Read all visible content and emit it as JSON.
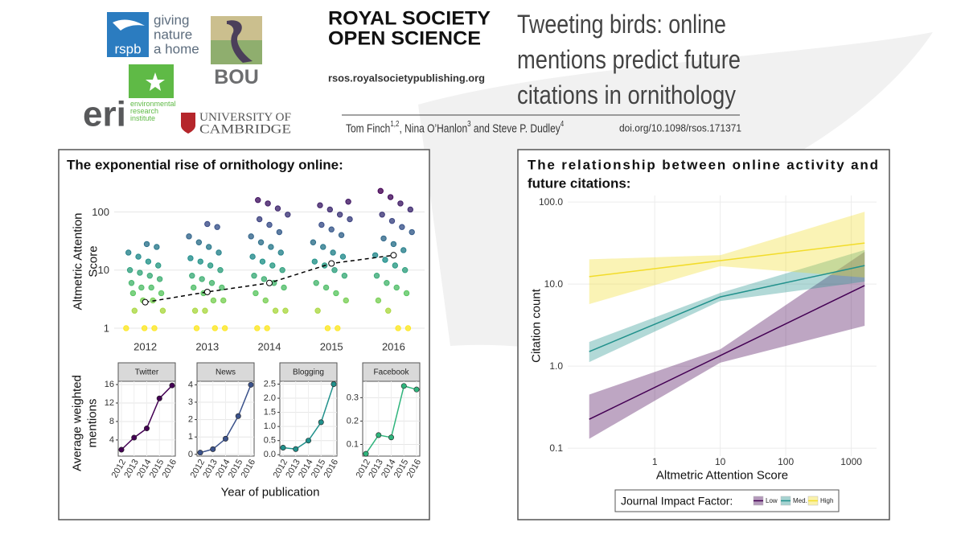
{
  "header": {
    "rspb_logo": {
      "mark": "rspb",
      "tagline": [
        "giving",
        "nature",
        "a home"
      ]
    },
    "bou_logo": "BOU",
    "eri_logo": {
      "mark": "eri",
      "name": [
        "environmental",
        "research",
        "institute"
      ]
    },
    "cambridge_logo": [
      "UNIVERSITY OF",
      "CAMBRIDGE"
    ],
    "journal": [
      "ROYAL SOCIETY",
      "OPEN SCIENCE"
    ],
    "journal_url": "rsos.royalsocietypublishing.org",
    "title": [
      "Tweeting birds: online",
      "mentions predict future",
      "citations in ornithology"
    ],
    "authors": [
      {
        "text": "Tom Finch",
        "sup": "1,2"
      },
      {
        "text": ", Nina O’Hanlon",
        "sup": "3"
      },
      {
        "text": " and Steve P. Dudley",
        "sup": "4"
      }
    ],
    "doi": "doi.org/10.1098/rsos.171371"
  },
  "left_panel": {
    "heading": "The exponential rise of ornithology online:",
    "facet_ylabel": [
      "Average weighted",
      "mentions"
    ],
    "facet_xlabel": "Year of publication"
  },
  "right_panel": {
    "heading": [
      "The relationship between online activity and",
      "future citations:"
    ]
  },
  "chart_data": [
    {
      "type": "strip",
      "ylabel": [
        "Altmetric Attention",
        "Score"
      ],
      "categories": [
        "2012",
        "2013",
        "2014",
        "2015",
        "2016"
      ],
      "values": [
        [
          1,
          1,
          1,
          2,
          2,
          3,
          3,
          4,
          4,
          5,
          5,
          6,
          7,
          8,
          9,
          10,
          12,
          14,
          17,
          20,
          25,
          28
        ],
        [
          1,
          1,
          1,
          2,
          2,
          3,
          3,
          4,
          5,
          5,
          6,
          7,
          8,
          10,
          12,
          14,
          16,
          20,
          25,
          30,
          38,
          55,
          62
        ],
        [
          1,
          1,
          2,
          2,
          3,
          4,
          5,
          6,
          7,
          8,
          10,
          12,
          14,
          17,
          20,
          25,
          30,
          38,
          45,
          60,
          75,
          90,
          115,
          140,
          160
        ],
        [
          1,
          1,
          2,
          3,
          4,
          5,
          6,
          8,
          10,
          12,
          14,
          17,
          20,
          25,
          30,
          40,
          50,
          60,
          75,
          90,
          110,
          130,
          150
        ],
        [
          1,
          1,
          2,
          3,
          4,
          5,
          6,
          8,
          10,
          12,
          15,
          18,
          22,
          28,
          35,
          45,
          55,
          70,
          90,
          110,
          140,
          180,
          230
        ]
      ],
      "means": [
        2.8,
        4.2,
        6,
        13,
        18
      ],
      "mean_color": "#000000",
      "colormap": "viridis",
      "log_y": true,
      "ylim": [
        0.6,
        330
      ],
      "yticks": [
        1,
        10,
        100
      ],
      "grid": true
    },
    {
      "type": "line",
      "title": "Twitter",
      "categories": [
        "2012",
        "2013",
        "2014",
        "2015",
        "2016"
      ],
      "values": [
        1.9,
        4.5,
        6.5,
        13,
        15.8
      ],
      "color": "#440154",
      "ylim": [
        0.5,
        16.7
      ],
      "yticks": [
        4,
        8,
        12,
        16
      ],
      "grid": true
    },
    {
      "type": "line",
      "title": "News",
      "categories": [
        "2012",
        "2013",
        "2014",
        "2015",
        "2016"
      ],
      "values": [
        0.1,
        0.3,
        0.9,
        2.2,
        4.0
      ],
      "color": "#3b528b",
      "ylim": [
        -0.1,
        4.2
      ],
      "yticks": [
        0,
        1,
        2,
        3,
        4
      ],
      "grid": true
    },
    {
      "type": "line",
      "title": "Blogging",
      "categories": [
        "2012",
        "2013",
        "2014",
        "2015",
        "2016"
      ],
      "values": [
        0.25,
        0.2,
        0.5,
        1.15,
        2.5
      ],
      "color": "#21918c",
      "ylim": [
        -0.05,
        2.6
      ],
      "yticks": [
        {
          "value": 0,
          "label": "0.0"
        },
        0.5,
        {
          "value": 1,
          "label": "1.0"
        },
        1.5,
        {
          "value": 2,
          "label": "2.0"
        },
        2.5
      ],
      "grid": true
    },
    {
      "type": "line",
      "title": "Facebook",
      "categories": [
        "2012",
        "2013",
        "2014",
        "2015",
        "2016"
      ],
      "values": [
        0.06,
        0.14,
        0.13,
        0.35,
        0.335
      ],
      "color": "#2fb47c",
      "ylim": [
        0.05,
        0.37
      ],
      "yticks": [
        0.1,
        0.2,
        0.3
      ],
      "grid": true
    },
    {
      "type": "ribbon",
      "xlabel": "Altmetric Attention Score",
      "ylabel": "Citation count",
      "log_x": true,
      "log_y": true,
      "xlim": [
        0.047,
        2430
      ],
      "ylim": [
        0.08,
        120
      ],
      "xticks": [
        1,
        10,
        100,
        1000
      ],
      "yticks": [
        0.1,
        {
          "value": 1,
          "label": "1.0"
        },
        {
          "value": 10,
          "label": "10.0"
        },
        {
          "value": 100,
          "label": "100.0"
        }
      ],
      "grid": true,
      "legend": "bottom",
      "legend_title": "Journal Impact Factor:",
      "x": [
        0.1,
        10,
        1600
      ],
      "series": [
        {
          "name": "Low",
          "color": "#440154",
          "values": [
            0.225,
            1.34,
            9.6
          ],
          "lower": [
            0.13,
            1.1,
            3.1
          ],
          "upper": [
            0.45,
            1.6,
            24.7
          ]
        },
        {
          "name": "Med.",
          "color": "#21918c",
          "values": [
            1.5,
            6.97,
            16.8
          ],
          "lower": [
            1.12,
            6.2,
            10.7
          ],
          "upper": [
            1.97,
            7.8,
            26
          ]
        },
        {
          "name": "High",
          "color": "#f2dc2a",
          "values": [
            12.3,
            19.3,
            31.6
          ],
          "lower": [
            5.7,
            16.5,
            12
          ],
          "upper": [
            20,
            22.5,
            76
          ]
        }
      ]
    }
  ]
}
